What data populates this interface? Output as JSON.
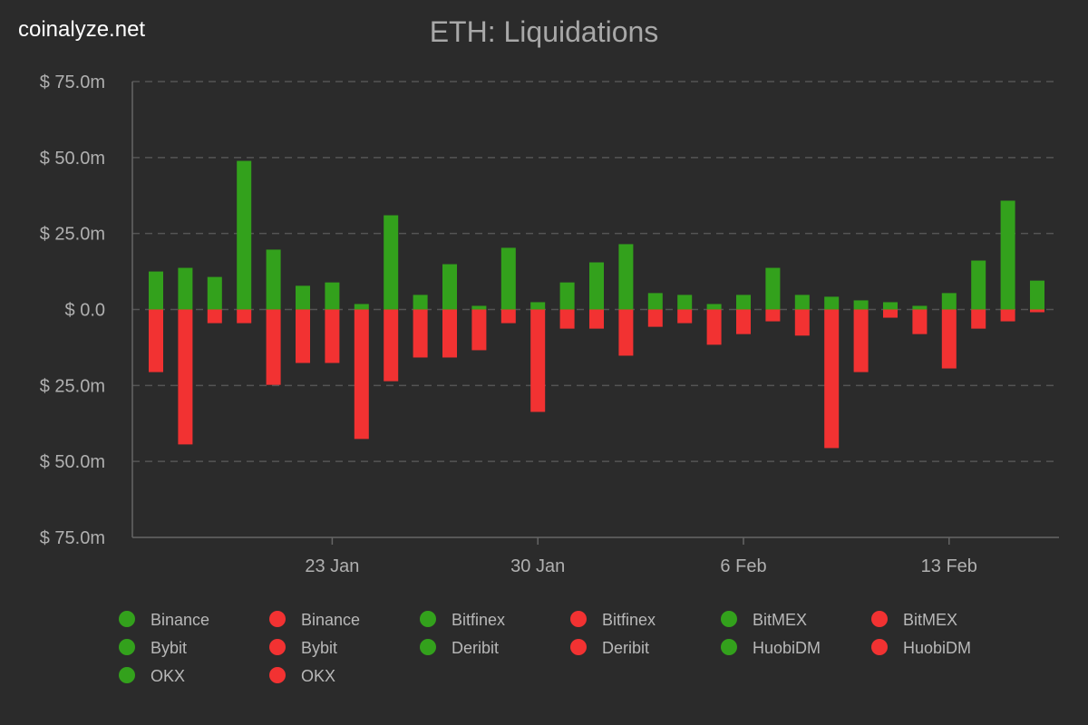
{
  "site": "coinalyze.net",
  "chart_data": {
    "type": "bar",
    "title": "ETH: Liquidations",
    "xlabel": "",
    "ylabel": "",
    "ylim": [
      -75,
      75
    ],
    "yticks": [
      75,
      50,
      25,
      0,
      -25,
      -50,
      -75
    ],
    "ytick_labels": [
      "$ 75.0m",
      "$ 50.0m",
      "$ 25.0m",
      "$ 0.0",
      "$ 25.0m",
      "$ 50.0m",
      "$ 75.0m"
    ],
    "xtick_labels": [
      {
        "label": "23 Jan",
        "category": "23 Jan"
      },
      {
        "label": "30 Jan",
        "category": "30 Jan"
      },
      {
        "label": "6 Feb",
        "category": "6 Feb"
      },
      {
        "label": "13 Feb",
        "category": "13 Feb"
      }
    ],
    "grid": true,
    "legend_placement": "bottom",
    "colors": {
      "long": "#33a11c",
      "short": "#f23232"
    },
    "categories": [
      "17 Jan",
      "18 Jan",
      "19 Jan",
      "20 Jan",
      "21 Jan",
      "22 Jan",
      "23 Jan",
      "24 Jan",
      "25 Jan",
      "26 Jan",
      "27 Jan",
      "28 Jan",
      "29 Jan",
      "30 Jan",
      "31 Jan",
      "1 Feb",
      "2 Feb",
      "3 Feb",
      "4 Feb",
      "5 Feb",
      "6 Feb",
      "7 Feb",
      "8 Feb",
      "9 Feb",
      "10 Feb",
      "11 Feb",
      "12 Feb",
      "13 Feb",
      "14 Feb",
      "15 Feb",
      "16 Feb"
    ],
    "series": [
      {
        "side": "long",
        "values": [
          12.5,
          13.7,
          10.7,
          48.9,
          19.7,
          7.8,
          8.9,
          1.8,
          31.0,
          4.8,
          14.9,
          1.2,
          20.3,
          2.4,
          8.9,
          15.5,
          21.5,
          5.4,
          4.8,
          1.8,
          4.8,
          13.7,
          4.8,
          4.2,
          3.0,
          2.4,
          1.2,
          5.4,
          16.1,
          35.8,
          9.5
        ]
      },
      {
        "side": "short",
        "values": [
          -20.6,
          -44.4,
          -4.5,
          -4.5,
          -24.8,
          -17.6,
          -17.6,
          -42.6,
          -23.6,
          -15.8,
          -15.8,
          -13.4,
          -4.5,
          -33.7,
          -6.3,
          -6.3,
          -15.2,
          -5.7,
          -4.5,
          -11.6,
          -8.1,
          -3.9,
          -8.6,
          -45.6,
          -20.6,
          -2.7,
          -8.1,
          -19.4,
          -6.3,
          -3.9,
          -0.9
        ]
      }
    ],
    "legend": [
      {
        "name": "Binance",
        "side": "long"
      },
      {
        "name": "Binance",
        "side": "short"
      },
      {
        "name": "Bitfinex",
        "side": "long"
      },
      {
        "name": "Bitfinex",
        "side": "short"
      },
      {
        "name": "BitMEX",
        "side": "long"
      },
      {
        "name": "BitMEX",
        "side": "short"
      },
      {
        "name": "Bybit",
        "side": "long"
      },
      {
        "name": "Bybit",
        "side": "short"
      },
      {
        "name": "Deribit",
        "side": "long"
      },
      {
        "name": "Deribit",
        "side": "short"
      },
      {
        "name": "HuobiDM",
        "side": "long"
      },
      {
        "name": "HuobiDM",
        "side": "short"
      },
      {
        "name": "OKX",
        "side": "long"
      },
      {
        "name": "OKX",
        "side": "short"
      }
    ]
  }
}
